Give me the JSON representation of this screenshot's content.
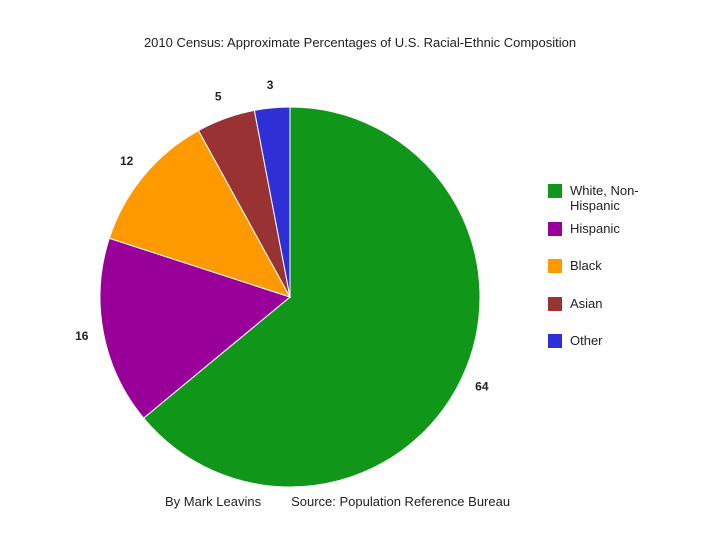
{
  "chart_data": {
    "type": "pie",
    "title": "2010 Census: Approximate Percentages of U.S. Racial-Ethnic Composition",
    "categories": [
      "White, Non-Hispanic",
      "Hispanic",
      "Black",
      "Asian",
      "Other"
    ],
    "values": [
      64,
      16,
      12,
      5,
      3
    ],
    "colors": [
      "#109618",
      "#990099",
      "#ff9900",
      "#993333",
      "#2f2fd6"
    ],
    "legend": "right",
    "author": "By Mark Leavins",
    "source": "Source: Population Reference Bureau"
  }
}
